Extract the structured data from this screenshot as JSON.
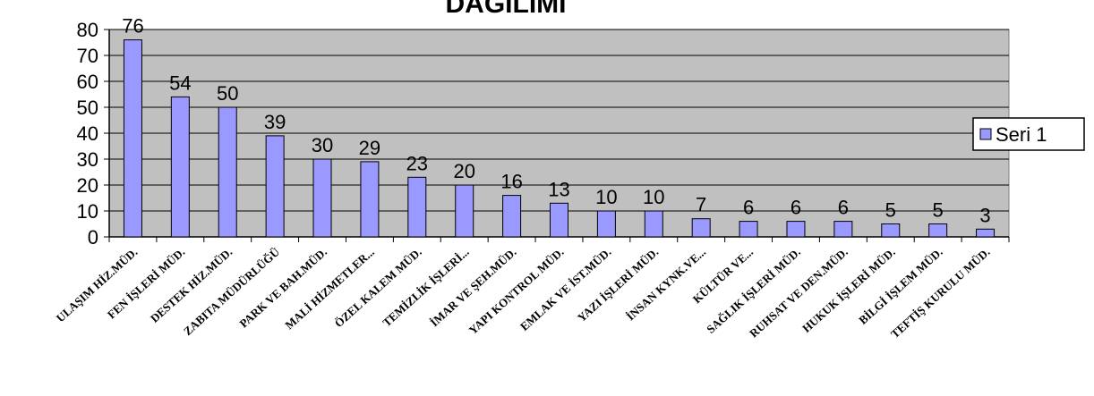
{
  "chart_data": {
    "type": "bar",
    "title": "DAĞILIMI",
    "categories": [
      "ULAŞIM HİZ.MÜD.",
      "FEN İŞLERİ MÜD.",
      "DESTEK HİZ.MÜD.",
      "ZABITA MÜDÜRLÜĞÜ",
      "PARK VE BAH.MÜD.",
      "MALİ HİZMETLER...",
      "ÖZEL KALEM MÜD.",
      "TEMİZLİK İŞLERİ...",
      "İMAR VE ŞEH.MÜD.",
      "YAPI KONTROL MÜD.",
      "EMLAK VE İST.MÜD.",
      "YAZI İŞLERİ MÜD.",
      "İNSAN KYNK.VE...",
      "KÜLTÜR VE...",
      "SAĞLIK İŞLERİ MÜD.",
      "RUHSAT VE DEN.MÜD.",
      "HUKUK İŞLERİ MÜD.",
      "BİLGİ İŞLEM MÜD.",
      "TEFTİŞ KURULU MÜD."
    ],
    "series": [
      {
        "name": "Seri 1",
        "color": "#9999ff",
        "values": [
          76,
          54,
          50,
          39,
          30,
          29,
          23,
          20,
          16,
          13,
          10,
          10,
          7,
          6,
          6,
          6,
          5,
          5,
          3
        ]
      }
    ],
    "ylim": [
      0,
      80
    ],
    "yticks": [
      0,
      10,
      20,
      30,
      40,
      50,
      60,
      70,
      80
    ],
    "plot_background": "#c0c0c0",
    "grid": true,
    "legend_position": "right"
  }
}
